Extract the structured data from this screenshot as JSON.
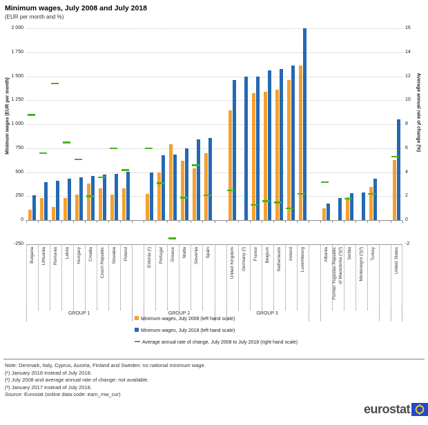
{
  "title": "Minimum wages, July 2008 and July 2018",
  "subtitle": "(EUR per month and %)",
  "chart_data": {
    "type": "bar",
    "title": "Minimum wages, July 2008 and July 2018",
    "subtitle": "(EUR per month and %)",
    "left_axis": {
      "label": "Minimum wages (EUR per month)",
      "min": -250,
      "max": 2000,
      "step": 250,
      "ticks": [
        "2 000",
        "1 750",
        "1 500",
        "1 250",
        "1 000",
        "750",
        "500",
        "250",
        "0",
        "-250"
      ]
    },
    "right_axis": {
      "label": "Average annual rate of change (%)",
      "min": -2,
      "max": 16,
      "step": 2,
      "ticks": [
        "16",
        "14",
        "12",
        "10",
        "8",
        "6",
        "4",
        "2",
        "0",
        "-2"
      ]
    },
    "series_names": [
      "Minimum wages, July 2008 (left hand scale)",
      "Minimum wages, July 2018 (left hand scale)",
      "Average annual rate of change, July 2008 to July 2018 (right hand scale)"
    ],
    "groups": [
      {
        "label": "GROUP 1",
        "countries": [
          {
            "name": "Bulgaria",
            "wage_jul_2008": 112,
            "wage_jul_2018": 261,
            "rate": 8.8
          },
          {
            "name": "Lithuania",
            "wage_jul_2008": 232,
            "wage_jul_2018": 400,
            "rate": 5.6
          },
          {
            "name": "Romania",
            "wage_jul_2008": 139,
            "wage_jul_2018": 408,
            "rate": 11.4
          },
          {
            "name": "Latvia",
            "wage_jul_2008": 230,
            "wage_jul_2018": 430,
            "rate": 6.5
          },
          {
            "name": "Hungary",
            "wage_jul_2008": 271,
            "wage_jul_2018": 445,
            "rate": 5.1
          },
          {
            "name": "Croatia",
            "wage_jul_2008": 381,
            "wage_jul_2018": 462,
            "rate": 2.0
          },
          {
            "name": "Czech Republic",
            "wage_jul_2008": 334,
            "wage_jul_2018": 478,
            "rate": 3.6
          },
          {
            "name": "Slovakia",
            "wage_jul_2008": 269,
            "wage_jul_2018": 480,
            "rate": 6.0
          },
          {
            "name": "Poland",
            "wage_jul_2008": 334,
            "wage_jul_2018": 503,
            "rate": 4.2
          }
        ]
      },
      {
        "label": "GROUP 2",
        "countries": [
          {
            "name": "Estonia (¹)",
            "wage_jul_2008": 278,
            "wage_jul_2018": 500,
            "rate": 6.0
          },
          {
            "name": "Portugal",
            "wage_jul_2008": 497,
            "wage_jul_2018": 677,
            "rate": 3.1
          },
          {
            "name": "Greece",
            "wage_jul_2008": 794,
            "wage_jul_2018": 684,
            "rate": -1.5
          },
          {
            "name": "Malta",
            "wage_jul_2008": 617,
            "wage_jul_2018": 748,
            "rate": 1.9
          },
          {
            "name": "Slovenia",
            "wage_jul_2008": 539,
            "wage_jul_2018": 843,
            "rate": 4.6
          },
          {
            "name": "Spain",
            "wage_jul_2008": 700,
            "wage_jul_2018": 859,
            "rate": 2.1
          }
        ]
      },
      {
        "label": "GROUP 3",
        "countries": [
          {
            "name": "United Kingdom",
            "wage_jul_2008": 1148,
            "wage_jul_2018": 1464,
            "rate": 2.5
          },
          {
            "name": "Germany (²)",
            "wage_jul_2008": null,
            "wage_jul_2018": 1498,
            "rate": null
          },
          {
            "name": "France",
            "wage_jul_2008": 1321,
            "wage_jul_2018": 1498,
            "rate": 1.3
          },
          {
            "name": "Belgium",
            "wage_jul_2008": 1336,
            "wage_jul_2018": 1563,
            "rate": 1.6
          },
          {
            "name": "Netherlands",
            "wage_jul_2008": 1357,
            "wage_jul_2018": 1578,
            "rate": 1.5
          },
          {
            "name": "Ireland",
            "wage_jul_2008": 1462,
            "wage_jul_2018": 1614,
            "rate": 1.0
          },
          {
            "name": "Luxembourg",
            "wage_jul_2008": 1610,
            "wage_jul_2018": 1999,
            "rate": 2.2
          }
        ]
      },
      {
        "label": "",
        "countries": [
          {
            "name": "Albania",
            "wage_jul_2008": 124,
            "wage_jul_2018": 172,
            "rate": 3.2
          },
          {
            "name": "Former Yugoslav Republic\nof Macedonia (²)(³)",
            "wage_jul_2008": null,
            "wage_jul_2018": 230,
            "rate": null
          },
          {
            "name": "Serbia",
            "wage_jul_2008": 238,
            "wage_jul_2018": 284,
            "rate": 1.8
          },
          {
            "name": "Montenegro (²)(³)",
            "wage_jul_2008": null,
            "wage_jul_2018": 288,
            "rate": null
          },
          {
            "name": "Turkey",
            "wage_jul_2008": 345,
            "wage_jul_2018": 430,
            "rate": 2.2
          }
        ]
      },
      {
        "label": "",
        "countries": [
          {
            "name": "United States",
            "wage_jul_2008": 625,
            "wage_jul_2018": 1048,
            "rate": 5.3
          }
        ]
      }
    ]
  },
  "legend": {
    "items": [
      {
        "swatch": "square",
        "color": "#F5A02E",
        "label": "Minimum wages, July 2008 (left hand scale)"
      },
      {
        "swatch": "square",
        "color": "#2569B2",
        "label": "Minimum wages, July 2018 (left hand scale)"
      },
      {
        "swatch": "dash",
        "color": "#46B320",
        "label": "Average annual rate of change, July 2008 to July 2018 (right hand scale)"
      }
    ]
  },
  "notes": {
    "lines": [
      "Note: Denmark, Italy, Cyprus, Austria, Finland and Sweden: no national minimum wage.",
      "(¹) January 2018 instead of July 2018.",
      "(²) July 2008 and average annual rate of change: not available.",
      "(³) January 2017 instead of July 2018."
    ],
    "source_prefix": "Source:",
    "source_text": " Eurostat (online data code: earn_mw_cur)"
  },
  "logo": {
    "text": "eurostat"
  },
  "colors": {
    "bar_2008": "#F5A02E",
    "bar_2018": "#2569B2",
    "rate_dash": "#46B320",
    "gridline": "#C6C6C6",
    "logo_blue": "#2449C8",
    "logo_stars": "#FFD617"
  }
}
